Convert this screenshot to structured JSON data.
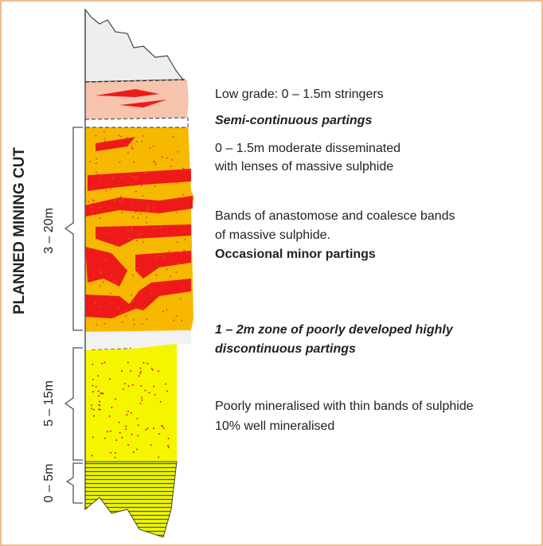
{
  "side_title": "PLANNED MINING CUT",
  "thickness_labels": [
    "3 – 20m",
    "5 – 15m",
    "0 – 5m"
  ],
  "descriptions": [
    [
      "Low grade: 0 – 1.5m stringers"
    ],
    [
      "Semi-continuous partings"
    ],
    [
      "0 – 1.5m moderate disseminated",
      "with lenses of massive sulphide"
    ],
    [
      "Bands of anastomose and coalesce bands",
      "of massive sulphide.",
      "Occasional minor partings"
    ],
    [
      "1 – 2m zone of poorly developed highly",
      "discontinuous partings"
    ],
    [
      "Poorly mineralised with thin bands of sulphide",
      "10% well mineralised"
    ]
  ]
}
